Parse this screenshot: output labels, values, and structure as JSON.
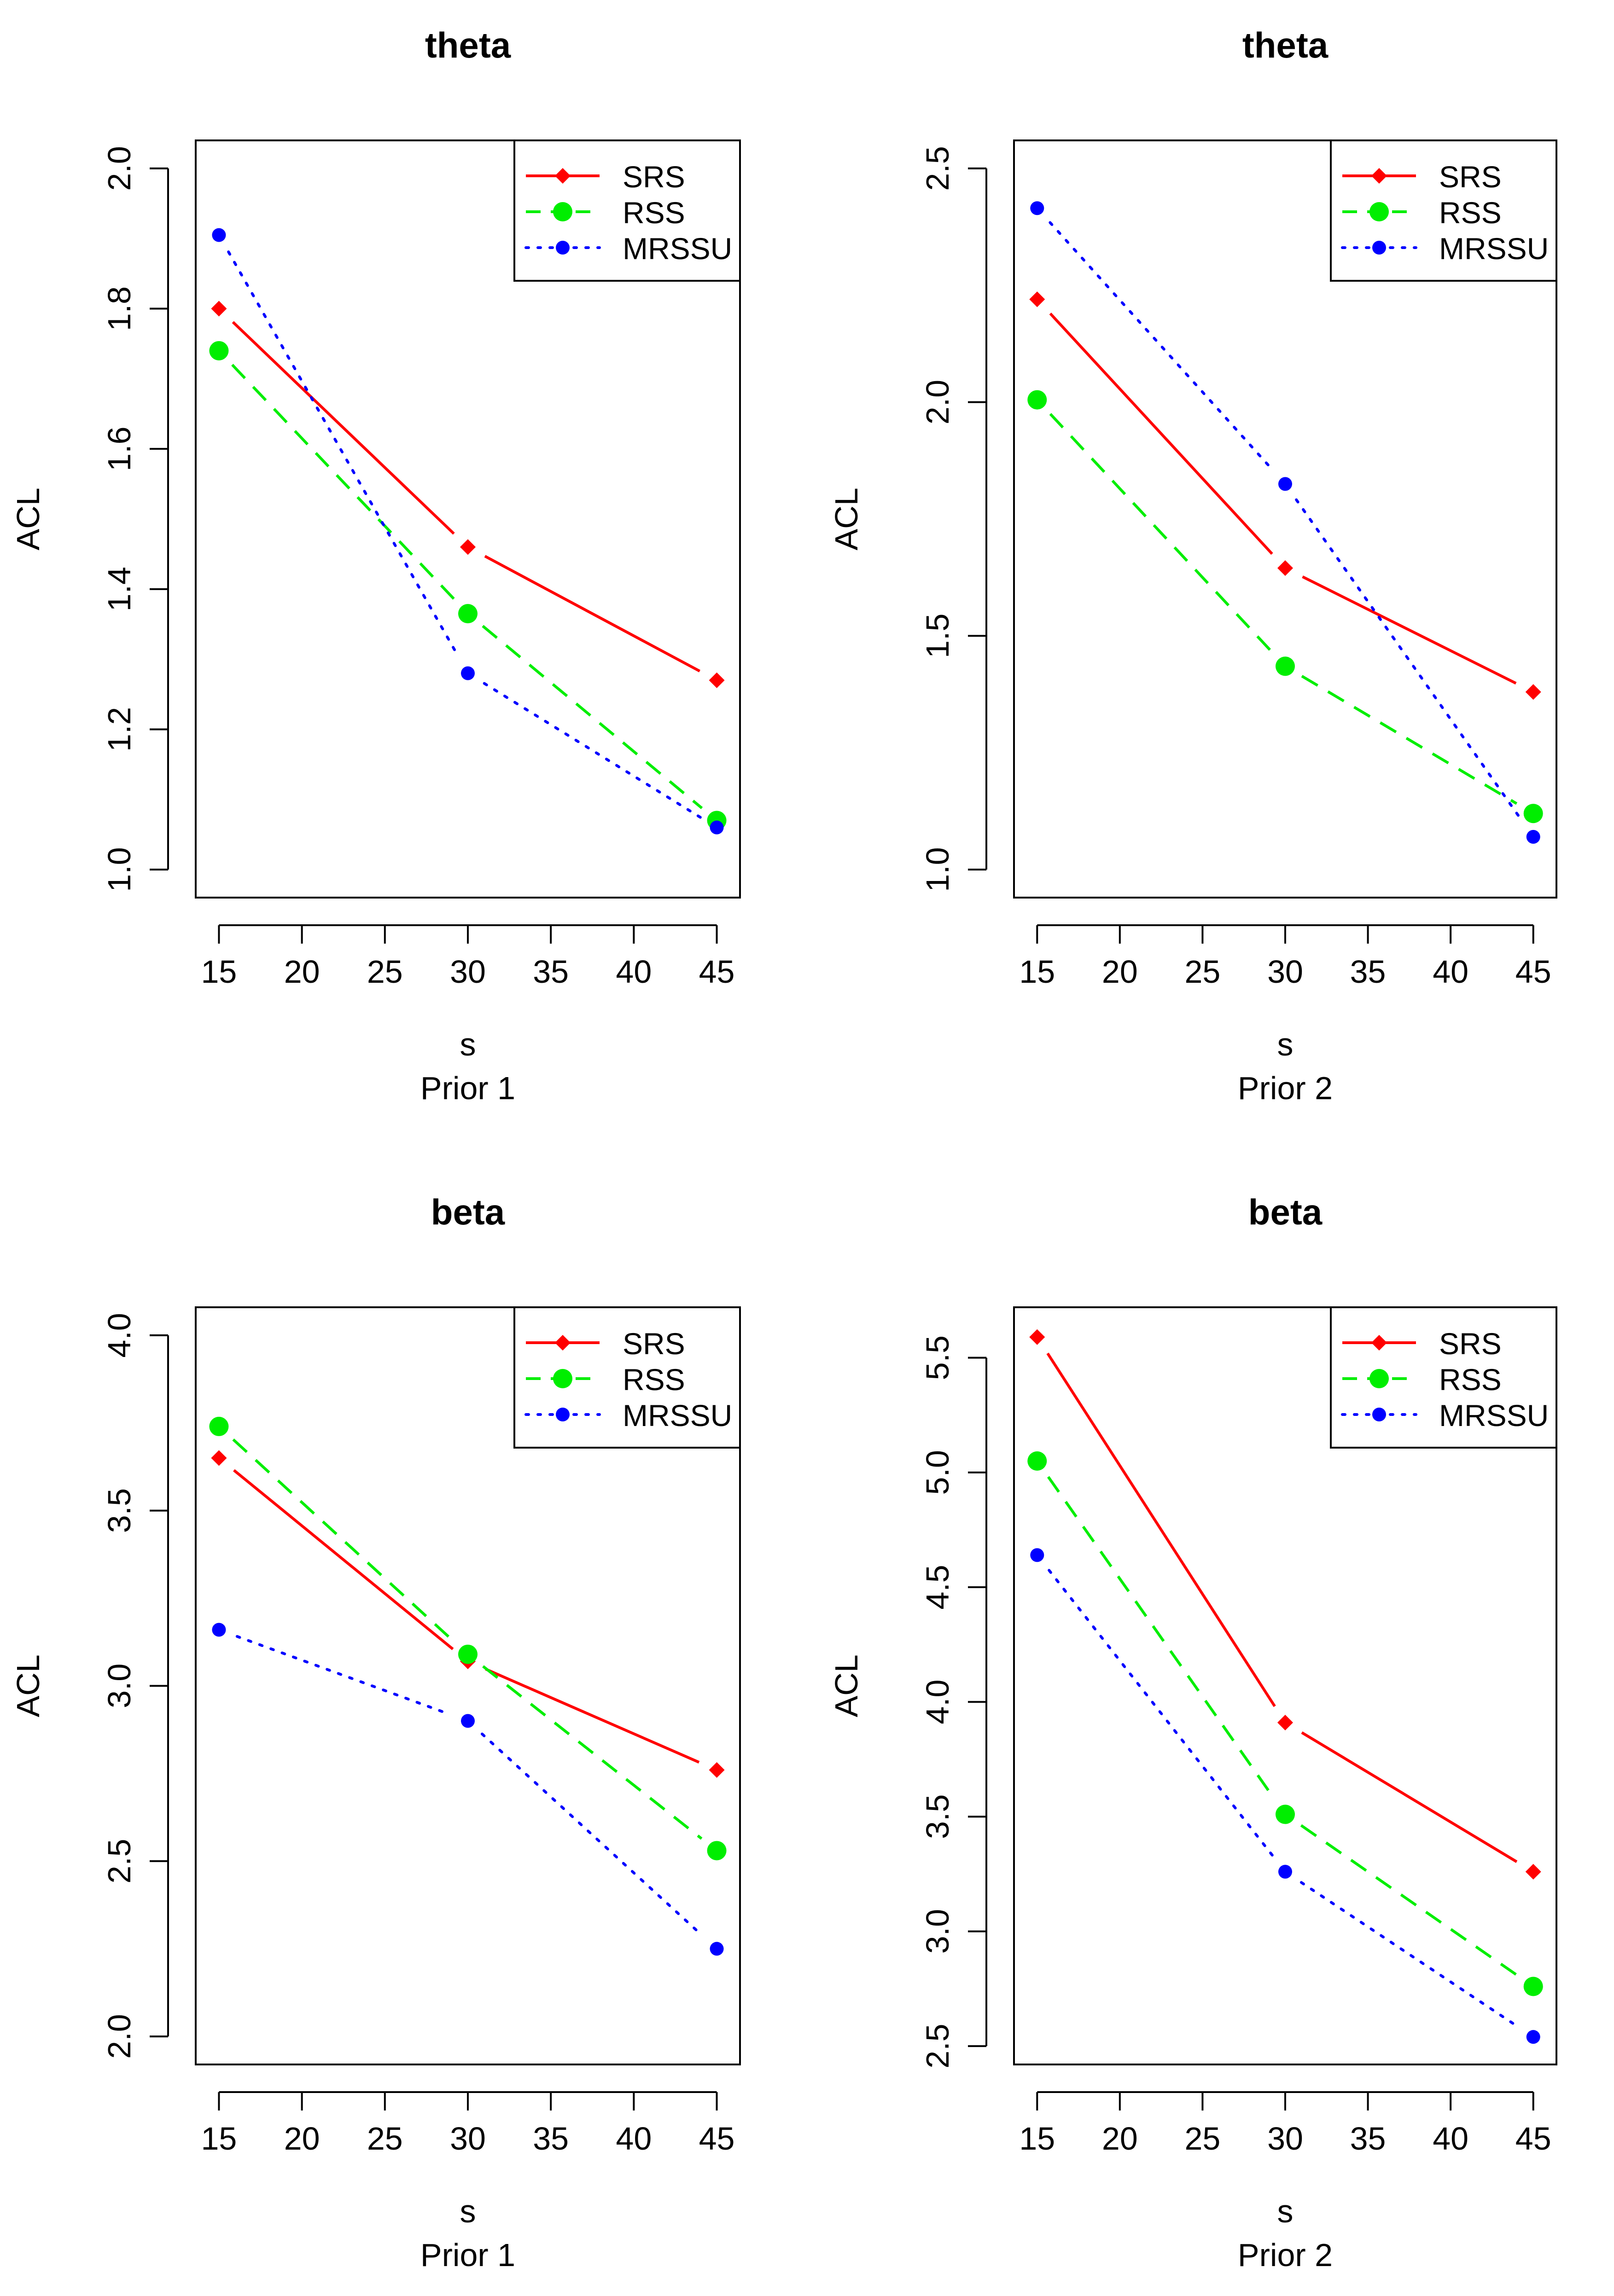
{
  "chart_data": [
    {
      "type": "line",
      "title": "theta",
      "xlabel": "s",
      "subtitle": "Prior 1",
      "ylabel": "ACL",
      "x": [
        15,
        30,
        45
      ],
      "xlim": [
        13.6,
        46.4
      ],
      "ylim": [
        0.96,
        2.04
      ],
      "xticks": [
        15,
        20,
        25,
        30,
        35,
        40,
        45
      ],
      "yticks": [
        1.0,
        1.2,
        1.4,
        1.6,
        1.8,
        2.0
      ],
      "ytick_labels": [
        "1.0",
        "1.2",
        "1.4",
        "1.6",
        "1.8",
        "2.0"
      ],
      "legend_position": "top-right",
      "series": [
        {
          "name": "SRS",
          "values": [
            1.8,
            1.46,
            1.27
          ]
        },
        {
          "name": "RSS",
          "values": [
            1.74,
            1.365,
            1.07
          ]
        },
        {
          "name": "MRSSU",
          "values": [
            1.905,
            1.28,
            1.06
          ]
        }
      ]
    },
    {
      "type": "line",
      "title": "theta",
      "xlabel": "s",
      "subtitle": "Prior 2",
      "ylabel": "ACL",
      "x": [
        15,
        30,
        45
      ],
      "xlim": [
        13.6,
        46.4
      ],
      "ylim": [
        0.94,
        2.56
      ],
      "xticks": [
        15,
        20,
        25,
        30,
        35,
        40,
        45
      ],
      "yticks": [
        1.0,
        1.5,
        2.0,
        2.5
      ],
      "ytick_labels": [
        "1.0",
        "1.5",
        "2.0",
        "2.5"
      ],
      "legend_position": "top-right",
      "series": [
        {
          "name": "SRS",
          "values": [
            2.22,
            1.645,
            1.38
          ]
        },
        {
          "name": "RSS",
          "values": [
            2.005,
            1.435,
            1.12
          ]
        },
        {
          "name": "MRSSU",
          "values": [
            2.415,
            1.825,
            1.07
          ]
        }
      ]
    },
    {
      "type": "line",
      "title": "beta",
      "xlabel": "s",
      "subtitle": "Prior 1",
      "ylabel": "ACL",
      "x": [
        15,
        30,
        45
      ],
      "xlim": [
        13.6,
        46.4
      ],
      "ylim": [
        1.92,
        4.08
      ],
      "xticks": [
        15,
        20,
        25,
        30,
        35,
        40,
        45
      ],
      "yticks": [
        2.0,
        2.5,
        3.0,
        3.5,
        4.0
      ],
      "ytick_labels": [
        "2.0",
        "2.5",
        "3.0",
        "3.5",
        "4.0"
      ],
      "legend_position": "top-right",
      "series": [
        {
          "name": "SRS",
          "values": [
            3.65,
            3.07,
            2.76
          ]
        },
        {
          "name": "RSS",
          "values": [
            3.74,
            3.09,
            2.53
          ]
        },
        {
          "name": "MRSSU",
          "values": [
            3.16,
            2.9,
            2.25
          ]
        }
      ]
    },
    {
      "type": "line",
      "title": "beta",
      "xlabel": "s",
      "subtitle": "Prior 2",
      "ylabel": "ACL",
      "x": [
        15,
        30,
        45
      ],
      "xlim": [
        13.6,
        46.4
      ],
      "ylim": [
        2.42,
        5.72
      ],
      "xticks": [
        15,
        20,
        25,
        30,
        35,
        40,
        45
      ],
      "yticks": [
        2.5,
        3.0,
        3.5,
        4.0,
        4.5,
        5.0,
        5.5
      ],
      "ytick_labels": [
        "2.5",
        "3.0",
        "3.5",
        "4.0",
        "4.5",
        "5.0",
        "5.5"
      ],
      "legend_position": "top-right",
      "series": [
        {
          "name": "SRS",
          "values": [
            5.59,
            3.91,
            3.26
          ]
        },
        {
          "name": "RSS",
          "values": [
            5.05,
            3.51,
            2.76
          ]
        },
        {
          "name": "MRSSU",
          "values": [
            4.64,
            3.26,
            2.54
          ]
        }
      ]
    }
  ],
  "series_styles": [
    {
      "name": "SRS",
      "color": "#ff0000",
      "line": "solid",
      "marker": "diamond"
    },
    {
      "name": "RSS",
      "color": "#00ee00",
      "line": "dashed",
      "marker": "large-dot"
    },
    {
      "name": "MRSSU",
      "color": "#0000ff",
      "line": "dotted",
      "marker": "small-dot"
    }
  ]
}
